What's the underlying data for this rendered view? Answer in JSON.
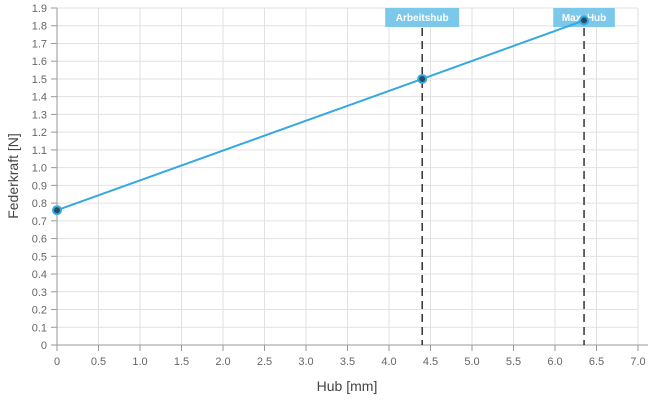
{
  "chart_data": {
    "type": "line",
    "title": "",
    "xlabel": "Hub [mm]",
    "ylabel": "Federkraft [N]",
    "xlim": [
      0,
      7.0
    ],
    "ylim": [
      0,
      1.9
    ],
    "x_ticks": [
      "0",
      "0.5",
      "1.0",
      "1.5",
      "2.0",
      "2.5",
      "3.0",
      "3.5",
      "4.0",
      "4.5",
      "5.0",
      "5.5",
      "6.0",
      "6.5",
      "7.0"
    ],
    "y_ticks": [
      "0",
      "0.1",
      "0.2",
      "0.3",
      "0.4",
      "0.5",
      "0.6",
      "0.7",
      "0.8",
      "0.9",
      "1.0",
      "1.1",
      "1.2",
      "1.3",
      "1.4",
      "1.5",
      "1.6",
      "1.7",
      "1.8",
      "1.9"
    ],
    "grid": true,
    "series": [
      {
        "x": [
          0,
          4.4,
          6.35
        ],
        "y": [
          0.76,
          1.5,
          1.83
        ],
        "color": "#35a9e0"
      }
    ],
    "annotations": [
      {
        "label": "Arbeitshub",
        "x": 4.4,
        "style": "dashed-vertical"
      },
      {
        "label": "Max. Hub",
        "x": 6.35,
        "style": "dashed-vertical"
      }
    ],
    "annotation_color": "#7cc8ea"
  }
}
